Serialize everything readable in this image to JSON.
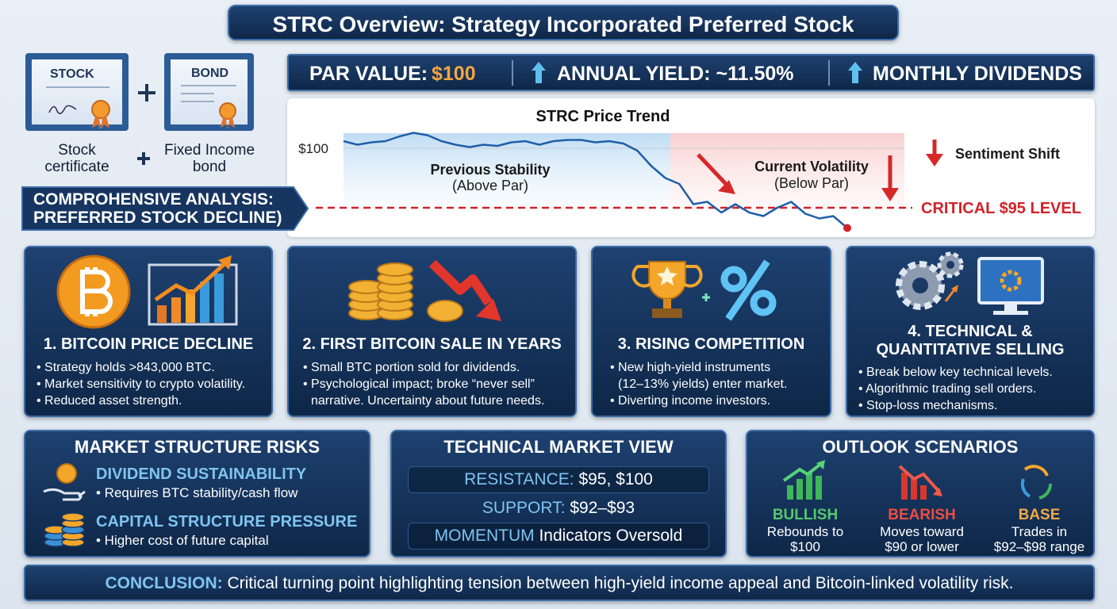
{
  "header": {
    "title": "STRC Overview: Strategy Incorporated Preferred Stock"
  },
  "hybrid": {
    "stock_icon": "STOCK",
    "bond_icon": "BOND",
    "stock_caption": [
      "Stock",
      "certificate"
    ],
    "bond_caption": [
      "Fixed Income",
      "bond"
    ]
  },
  "banner": [
    "COMPROHENSIVE ANALYSIS:",
    "PREFERRED STOCK DECLINE)"
  ],
  "stats": [
    {
      "label": "PAR VALUE:",
      "value": "$100"
    },
    {
      "label": "ANNUAL YIELD: ~11.50%"
    },
    {
      "label": "MONTHLY DIVIDENDS"
    }
  ],
  "chart_data": {
    "type": "line",
    "title": "STRC Price Trend",
    "values": [
      100.6,
      100.3,
      100.5,
      100.6,
      101.0,
      101.3,
      101.1,
      100.6,
      100.3,
      100.1,
      100.3,
      100.2,
      100.5,
      100.6,
      100.3,
      100.6,
      100.7,
      100.7,
      100.5,
      100.6,
      100.4,
      99.8,
      98.5,
      97.5,
      97.0,
      95.3,
      95.5,
      94.6,
      95.3,
      94.6,
      94.3,
      95.0,
      95.5,
      94.5,
      94.1,
      94.3,
      93.3
    ],
    "color": "#1f5fa8",
    "ylim": [
      93,
      101.5
    ],
    "yticks": [
      {
        "value": 100,
        "label": "$100"
      }
    ],
    "reference_line": {
      "value": 95,
      "label": "CRITICAL $95 LEVEL",
      "color": "#d0232a"
    },
    "annotations": [
      [
        "Previous Stability",
        "(Above Par)"
      ],
      [
        "Current Volatility",
        "(Below Par)"
      ],
      [
        "Sentiment Shift"
      ]
    ]
  },
  "factors": [
    {
      "title": [
        "1. BITCOIN PRICE DECLINE"
      ],
      "bullets": [
        "• Strategy holds >843,000 BTC.",
        "• Market sensitivity to crypto volatility.",
        "• Reduced asset strength."
      ]
    },
    {
      "title": [
        "2. FIRST BITCOIN SALE IN YEARS"
      ],
      "bullets": [
        "• Small BTC portion sold for dividends.",
        "• Psychological impact; broke “never sell”",
        "narrative. Uncertainty about future needs."
      ]
    },
    {
      "title": [
        "3. RISING COMPETITION"
      ],
      "bullets": [
        "• New high-yield instruments",
        "(12–13% yields) enter market.",
        "• Diverting income investors."
      ]
    },
    {
      "title": [
        "4. TECHNICAL &",
        "QUANTITATIVE SELLING"
      ],
      "bullets": [
        "• Break below key technical levels.",
        "• Algorithmic trading sell orders.",
        "• Stop-loss mechanisms."
      ]
    }
  ],
  "risks": {
    "title": "MARKET STRUCTURE RISKS",
    "items": [
      {
        "heading": "DIVIDEND SUSTAINABILITY",
        "text": "• Requires BTC stability/cash flow"
      },
      {
        "heading": "CAPITAL STRUCTURE PRESSURE",
        "text": "• Higher cost of future capital"
      }
    ]
  },
  "technical": {
    "title": "TECHNICAL MARKET VIEW",
    "rows": [
      {
        "key": "RESISTANCE:",
        "text": "$95, $100"
      },
      {
        "key": "SUPPORT:",
        "text": "$92–$93"
      },
      {
        "key": "MOMENTUM",
        "text": "Indicators Oversold"
      }
    ]
  },
  "outlook": {
    "title": "OUTLOOK SCENARIOS",
    "scenarios": [
      {
        "name": "BULLISH",
        "lines": [
          "Rebounds to",
          "$100"
        ]
      },
      {
        "name": "BEARISH",
        "lines": [
          "Moves toward",
          "$90 or lower"
        ]
      },
      {
        "name": "BASE",
        "lines": [
          "Trades in",
          "$92–$98 range"
        ]
      }
    ]
  },
  "conclusion": {
    "key": "CONCLUSION:",
    "text": "Critical turning point highlighting tension between high-yield income appeal and Bitcoin-linked volatility risk."
  }
}
